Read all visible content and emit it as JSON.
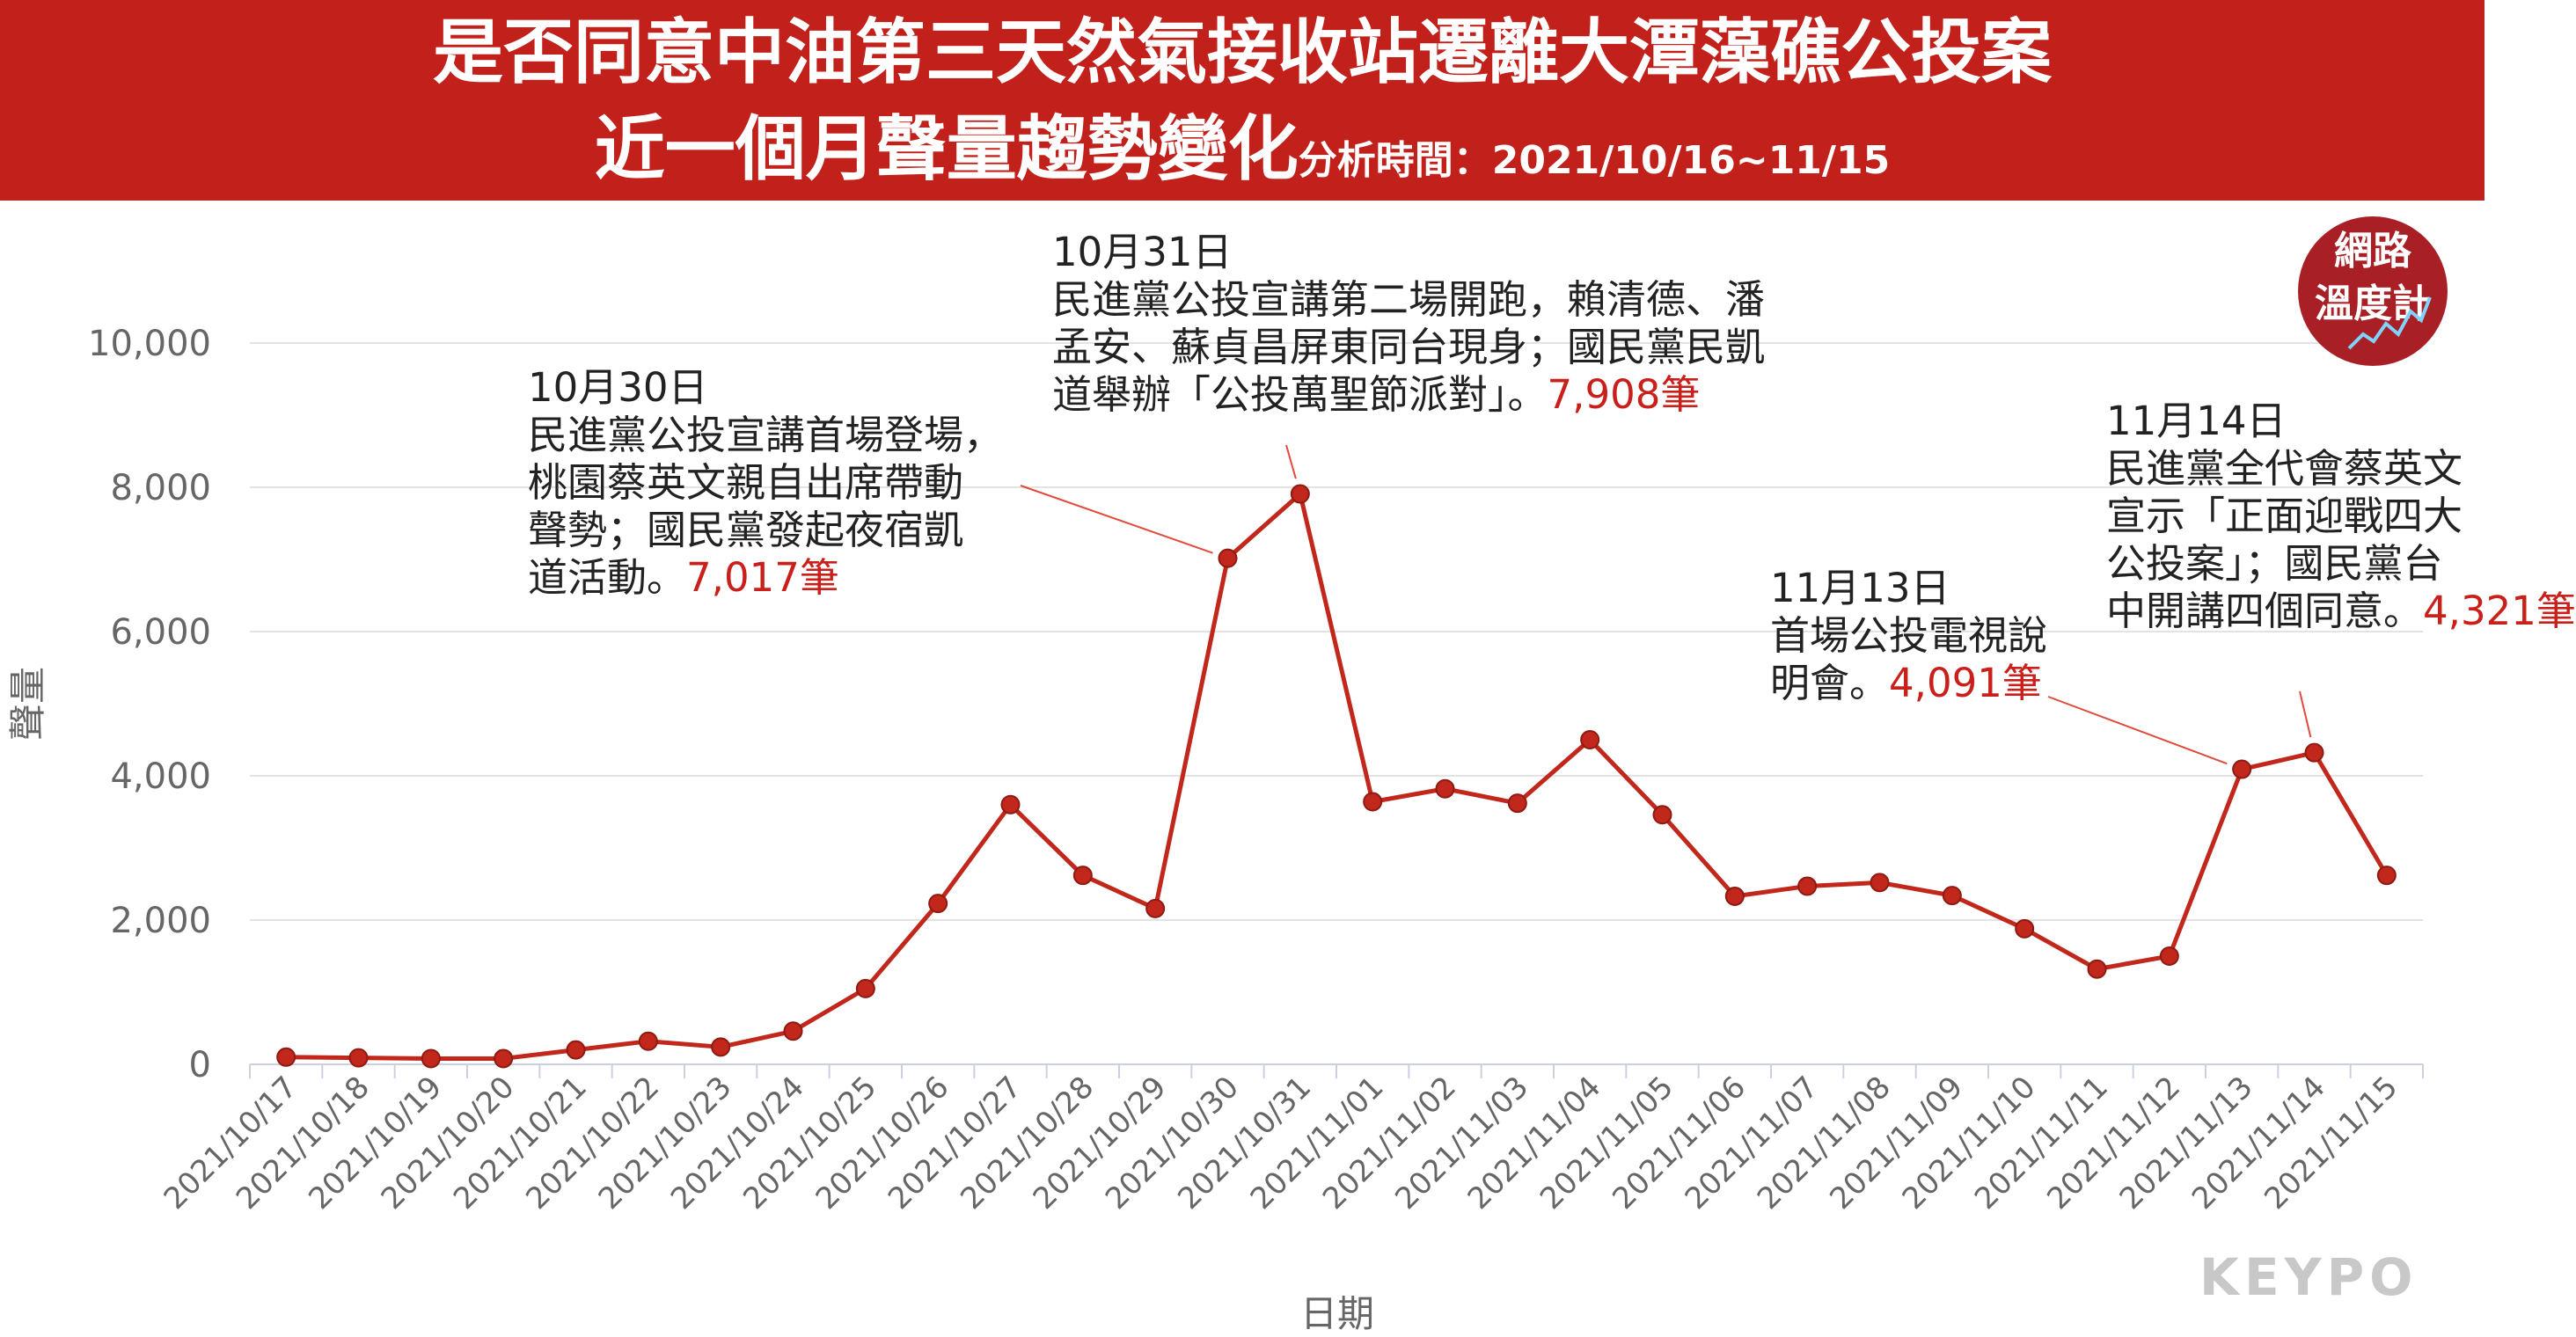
{
  "header": {
    "title_line1": "是否同意中油第三天然氣接收站遷離大潭藻礁公投案",
    "title_line2": "近一個月聲量趨勢變化",
    "period": "分析時間：2021/10/16~11/15"
  },
  "badge": {
    "line1": "網路",
    "line2": "溫度計"
  },
  "brand": "KEYPO",
  "colors": {
    "header_bg": "#c2201b",
    "line": "#c1271b",
    "highlight": "#c9201b",
    "badge": "#a81f26"
  },
  "annotations": [
    {
      "date": "10月30日",
      "lines": [
        "民進黨公投宣講首場登場，",
        "桃園蔡英文親自出席帶動",
        "聲勢；國民黨發起夜宿凱",
        "道活動。"
      ],
      "value": "7,017筆"
    },
    {
      "date": "10月31日",
      "lines": [
        "民進黨公投宣講第二場開跑，賴清德、潘",
        "孟安、蘇貞昌屏東同台現身；國民黨民凱",
        "道舉辦「公投萬聖節派對」。"
      ],
      "value": "7,908筆"
    },
    {
      "date": "11月13日",
      "lines": [
        "首場公投電視說",
        "明會。"
      ],
      "value": "4,091筆"
    },
    {
      "date": "11月14日",
      "lines": [
        "民進黨全代會蔡英文",
        "宣示「正面迎戰四大",
        "公投案」；國民黨台",
        "中開講四個同意。"
      ],
      "value": "4,321筆"
    }
  ],
  "chart_data": {
    "type": "line",
    "xlabel": "日期",
    "ylabel": "聲量",
    "ylim": [
      0,
      10000
    ],
    "yticks": [
      "0",
      "2,000",
      "4,000",
      "6,000",
      "8,000",
      "10,000"
    ],
    "grid": "horizontal",
    "categories": [
      "2021/10/17",
      "2021/10/18",
      "2021/10/19",
      "2021/10/20",
      "2021/10/21",
      "2021/10/22",
      "2021/10/23",
      "2021/10/24",
      "2021/10/25",
      "2021/10/26",
      "2021/10/27",
      "2021/10/28",
      "2021/10/29",
      "2021/10/30",
      "2021/10/31",
      "2021/11/01",
      "2021/11/02",
      "2021/11/03",
      "2021/11/04",
      "2021/11/05",
      "2021/11/06",
      "2021/11/07",
      "2021/11/08",
      "2021/11/09",
      "2021/11/10",
      "2021/11/11",
      "2021/11/12",
      "2021/11/13",
      "2021/11/14",
      "2021/11/15"
    ],
    "values": [
      100,
      90,
      80,
      80,
      200,
      320,
      240,
      460,
      1050,
      2230,
      3600,
      2620,
      2160,
      7017,
      7908,
      3640,
      3820,
      3620,
      4500,
      3460,
      2330,
      2470,
      2520,
      2340,
      1880,
      1320,
      1500,
      4091,
      4321,
      2620
    ]
  }
}
